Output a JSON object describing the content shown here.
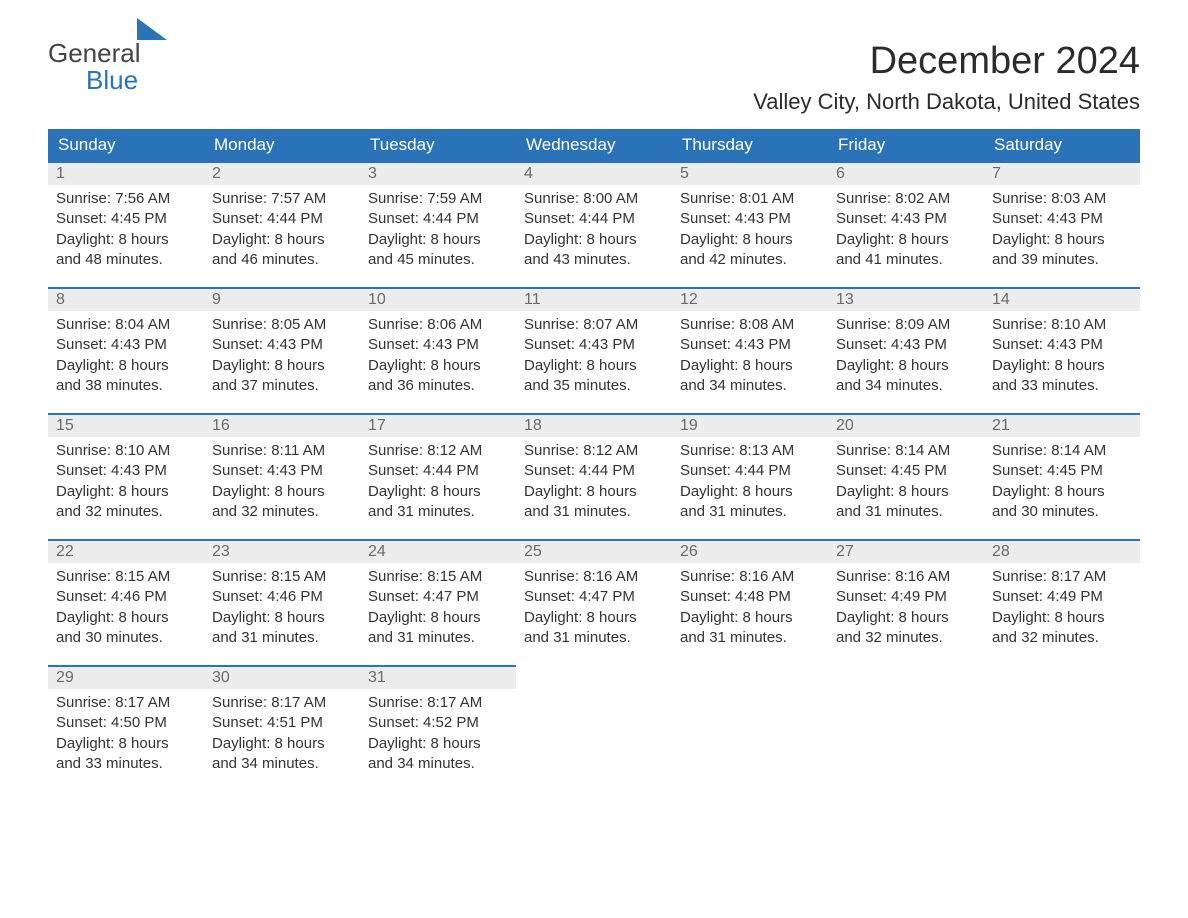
{
  "logo": {
    "word1": "General",
    "word2": "Blue",
    "accent_color": "#2a73b8"
  },
  "title": "December 2024",
  "location": "Valley City, North Dakota, United States",
  "colors": {
    "header_bg": "#2a73b8",
    "header_text": "#ffffff",
    "daynum_bg": "#ececec",
    "daynum_border": "#2a73b8",
    "daynum_text": "#6b6b6b",
    "body_text": "#333333",
    "background": "#ffffff"
  },
  "typography": {
    "title_fontsize": 38,
    "location_fontsize": 22,
    "dow_fontsize": 17,
    "daynum_fontsize": 16,
    "detail_fontsize": 15,
    "font_family": "Arial"
  },
  "days_of_week": [
    "Sunday",
    "Monday",
    "Tuesday",
    "Wednesday",
    "Thursday",
    "Friday",
    "Saturday"
  ],
  "labels": {
    "sunrise": "Sunrise:",
    "sunset": "Sunset:",
    "daylight": "Daylight:"
  },
  "weeks": [
    [
      {
        "n": "1",
        "sunrise": "7:56 AM",
        "sunset": "4:45 PM",
        "dl1": "8 hours",
        "dl2": "and 48 minutes."
      },
      {
        "n": "2",
        "sunrise": "7:57 AM",
        "sunset": "4:44 PM",
        "dl1": "8 hours",
        "dl2": "and 46 minutes."
      },
      {
        "n": "3",
        "sunrise": "7:59 AM",
        "sunset": "4:44 PM",
        "dl1": "8 hours",
        "dl2": "and 45 minutes."
      },
      {
        "n": "4",
        "sunrise": "8:00 AM",
        "sunset": "4:44 PM",
        "dl1": "8 hours",
        "dl2": "and 43 minutes."
      },
      {
        "n": "5",
        "sunrise": "8:01 AM",
        "sunset": "4:43 PM",
        "dl1": "8 hours",
        "dl2": "and 42 minutes."
      },
      {
        "n": "6",
        "sunrise": "8:02 AM",
        "sunset": "4:43 PM",
        "dl1": "8 hours",
        "dl2": "and 41 minutes."
      },
      {
        "n": "7",
        "sunrise": "8:03 AM",
        "sunset": "4:43 PM",
        "dl1": "8 hours",
        "dl2": "and 39 minutes."
      }
    ],
    [
      {
        "n": "8",
        "sunrise": "8:04 AM",
        "sunset": "4:43 PM",
        "dl1": "8 hours",
        "dl2": "and 38 minutes."
      },
      {
        "n": "9",
        "sunrise": "8:05 AM",
        "sunset": "4:43 PM",
        "dl1": "8 hours",
        "dl2": "and 37 minutes."
      },
      {
        "n": "10",
        "sunrise": "8:06 AM",
        "sunset": "4:43 PM",
        "dl1": "8 hours",
        "dl2": "and 36 minutes."
      },
      {
        "n": "11",
        "sunrise": "8:07 AM",
        "sunset": "4:43 PM",
        "dl1": "8 hours",
        "dl2": "and 35 minutes."
      },
      {
        "n": "12",
        "sunrise": "8:08 AM",
        "sunset": "4:43 PM",
        "dl1": "8 hours",
        "dl2": "and 34 minutes."
      },
      {
        "n": "13",
        "sunrise": "8:09 AM",
        "sunset": "4:43 PM",
        "dl1": "8 hours",
        "dl2": "and 34 minutes."
      },
      {
        "n": "14",
        "sunrise": "8:10 AM",
        "sunset": "4:43 PM",
        "dl1": "8 hours",
        "dl2": "and 33 minutes."
      }
    ],
    [
      {
        "n": "15",
        "sunrise": "8:10 AM",
        "sunset": "4:43 PM",
        "dl1": "8 hours",
        "dl2": "and 32 minutes."
      },
      {
        "n": "16",
        "sunrise": "8:11 AM",
        "sunset": "4:43 PM",
        "dl1": "8 hours",
        "dl2": "and 32 minutes."
      },
      {
        "n": "17",
        "sunrise": "8:12 AM",
        "sunset": "4:44 PM",
        "dl1": "8 hours",
        "dl2": "and 31 minutes."
      },
      {
        "n": "18",
        "sunrise": "8:12 AM",
        "sunset": "4:44 PM",
        "dl1": "8 hours",
        "dl2": "and 31 minutes."
      },
      {
        "n": "19",
        "sunrise": "8:13 AM",
        "sunset": "4:44 PM",
        "dl1": "8 hours",
        "dl2": "and 31 minutes."
      },
      {
        "n": "20",
        "sunrise": "8:14 AM",
        "sunset": "4:45 PM",
        "dl1": "8 hours",
        "dl2": "and 31 minutes."
      },
      {
        "n": "21",
        "sunrise": "8:14 AM",
        "sunset": "4:45 PM",
        "dl1": "8 hours",
        "dl2": "and 30 minutes."
      }
    ],
    [
      {
        "n": "22",
        "sunrise": "8:15 AM",
        "sunset": "4:46 PM",
        "dl1": "8 hours",
        "dl2": "and 30 minutes."
      },
      {
        "n": "23",
        "sunrise": "8:15 AM",
        "sunset": "4:46 PM",
        "dl1": "8 hours",
        "dl2": "and 31 minutes."
      },
      {
        "n": "24",
        "sunrise": "8:15 AM",
        "sunset": "4:47 PM",
        "dl1": "8 hours",
        "dl2": "and 31 minutes."
      },
      {
        "n": "25",
        "sunrise": "8:16 AM",
        "sunset": "4:47 PM",
        "dl1": "8 hours",
        "dl2": "and 31 minutes."
      },
      {
        "n": "26",
        "sunrise": "8:16 AM",
        "sunset": "4:48 PM",
        "dl1": "8 hours",
        "dl2": "and 31 minutes."
      },
      {
        "n": "27",
        "sunrise": "8:16 AM",
        "sunset": "4:49 PM",
        "dl1": "8 hours",
        "dl2": "and 32 minutes."
      },
      {
        "n": "28",
        "sunrise": "8:17 AM",
        "sunset": "4:49 PM",
        "dl1": "8 hours",
        "dl2": "and 32 minutes."
      }
    ],
    [
      {
        "n": "29",
        "sunrise": "8:17 AM",
        "sunset": "4:50 PM",
        "dl1": "8 hours",
        "dl2": "and 33 minutes."
      },
      {
        "n": "30",
        "sunrise": "8:17 AM",
        "sunset": "4:51 PM",
        "dl1": "8 hours",
        "dl2": "and 34 minutes."
      },
      {
        "n": "31",
        "sunrise": "8:17 AM",
        "sunset": "4:52 PM",
        "dl1": "8 hours",
        "dl2": "and 34 minutes."
      },
      null,
      null,
      null,
      null
    ]
  ]
}
